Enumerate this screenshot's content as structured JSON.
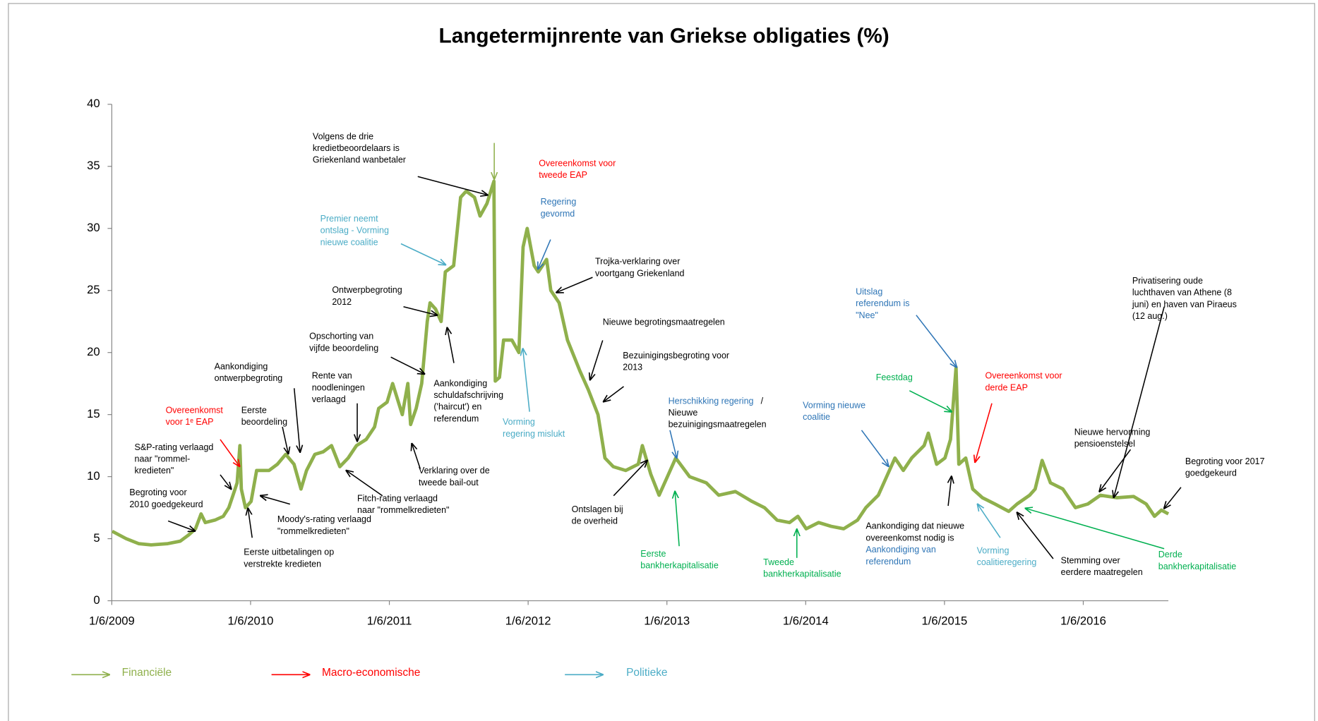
{
  "chart_data": {
    "type": "line",
    "title": "Langetermijnrente van Griekse obligaties (%)",
    "color": "#8fb04c",
    "xlim": [
      2009.4167,
      2017.03
    ],
    "xticks": [
      {
        "value": 2009.4167,
        "label": "1/6/2009"
      },
      {
        "value": 2010.4167,
        "label": "1/6/2010"
      },
      {
        "value": 2011.4167,
        "label": "1/6/2011"
      },
      {
        "value": 2012.4167,
        "label": "1/6/2012"
      },
      {
        "value": 2013.4167,
        "label": "1/6/2013"
      },
      {
        "value": 2014.4167,
        "label": "1/6/2014"
      },
      {
        "value": 2015.4167,
        "label": "1/6/2015"
      },
      {
        "value": 2016.4167,
        "label": "1/6/2016"
      }
    ],
    "ylim": [
      0,
      40
    ],
    "yticks": [
      0,
      5,
      10,
      15,
      20,
      25,
      30,
      35,
      40
    ],
    "x": [
      2009.42,
      2009.52,
      2009.61,
      2009.7,
      2009.82,
      2009.91,
      2009.97,
      2010.02,
      2010.06,
      2010.09,
      2010.16,
      2010.22,
      2010.26,
      2010.29,
      2010.32,
      2010.34,
      2010.35,
      2010.38,
      2010.42,
      2010.46,
      2010.55,
      2010.61,
      2010.67,
      2010.73,
      2010.78,
      2010.82,
      2010.88,
      2010.94,
      2011.0,
      2011.06,
      2011.12,
      2011.18,
      2011.25,
      2011.31,
      2011.34,
      2011.4,
      2011.44,
      2011.51,
      2011.55,
      2011.57,
      2011.61,
      2011.65,
      2011.69,
      2011.71,
      2011.75,
      2011.79,
      2011.82,
      2011.88,
      2011.93,
      2011.97,
      2012.03,
      2012.07,
      2012.12,
      2012.17,
      2012.18,
      2012.21,
      2012.24,
      2012.3,
      2012.35,
      2012.38,
      2012.41,
      2012.46,
      2012.49,
      2012.55,
      2012.58,
      2012.64,
      2012.7,
      2012.79,
      2012.85,
      2012.92,
      2012.97,
      2013.03,
      2013.12,
      2013.21,
      2013.24,
      2013.3,
      2013.36,
      2013.42,
      2013.48,
      2013.58,
      2013.7,
      2013.79,
      2013.91,
      2014.03,
      2014.12,
      2014.21,
      2014.3,
      2014.36,
      2014.42,
      2014.51,
      2014.6,
      2014.69,
      2014.79,
      2014.85,
      2014.94,
      2015.0,
      2015.06,
      2015.12,
      2015.18,
      2015.27,
      2015.3,
      2015.36,
      2015.42,
      2015.46,
      2015.5,
      2015.52,
      2015.57,
      2015.62,
      2015.69,
      2015.78,
      2015.88,
      2015.94,
      2016.03,
      2016.07,
      2016.12,
      2016.18,
      2016.27,
      2016.36,
      2016.45,
      2016.54,
      2016.66,
      2016.78,
      2016.87,
      2016.93,
      2016.98,
      2017.03
    ],
    "values": [
      5.6,
      5.0,
      4.6,
      4.5,
      4.6,
      4.8,
      5.3,
      5.8,
      7.0,
      6.3,
      6.5,
      6.8,
      7.5,
      8.5,
      9.5,
      12.5,
      9.0,
      7.5,
      8.0,
      10.5,
      10.5,
      11.0,
      11.8,
      11.0,
      9.0,
      10.5,
      11.8,
      12.0,
      12.5,
      10.8,
      11.5,
      12.5,
      13.0,
      14.0,
      15.5,
      16.0,
      17.5,
      15.0,
      17.5,
      14.2,
      15.5,
      17.5,
      22.5,
      24.0,
      23.5,
      22.5,
      26.5,
      27.0,
      32.5,
      33.0,
      32.5,
      31.0,
      32.0,
      33.8,
      17.7,
      18.0,
      21.0,
      21.0,
      20.0,
      28.5,
      30.0,
      27.0,
      26.5,
      27.5,
      25.0,
      24.0,
      21.0,
      18.5,
      17.0,
      15.0,
      11.5,
      10.8,
      10.5,
      11.0,
      12.5,
      10.2,
      8.5,
      10.0,
      11.5,
      10.0,
      9.5,
      8.5,
      8.8,
      8.0,
      7.5,
      6.5,
      6.3,
      6.8,
      5.8,
      6.3,
      6.0,
      5.8,
      6.5,
      7.5,
      8.5,
      10.0,
      11.5,
      10.5,
      11.5,
      12.5,
      13.5,
      11.0,
      11.5,
      13.0,
      18.8,
      11.0,
      11.5,
      9.0,
      8.3,
      7.8,
      7.2,
      7.8,
      8.5,
      9.0,
      11.3,
      9.5,
      9.0,
      7.5,
      7.8,
      8.5,
      8.3,
      8.4,
      7.8,
      6.8,
      7.3,
      7.0
    ],
    "annotations": [
      {
        "lines": [
          "Volgens de drie",
          "kredietbeoordelaars  is",
          "Griekenland  wanbetaler"
        ],
        "color": "#000000"
      },
      {
        "lines": [
          "Overeenkomst  voor",
          "tweede  EAP"
        ],
        "color": "#ff0000"
      },
      {
        "lines": [
          "Regering",
          "gevormd"
        ],
        "color": "#2e75b6"
      },
      {
        "lines": [
          "Premier  neemt",
          "ontslag - Vorming",
          "nieuwe coalitie"
        ],
        "color": "#4bacc6"
      },
      {
        "lines": [
          "Trojka-verklaring  over",
          "voortgang  Griekenland"
        ],
        "color": "#000000"
      },
      {
        "lines": [
          "Ontwerpbegroting",
          "2012"
        ],
        "color": "#000000"
      },
      {
        "lines": [
          "Nieuwe begrotingsmaatregelen"
        ],
        "color": "#000000"
      },
      {
        "lines": [
          "Opschorting van",
          "vijfde beoordeling"
        ],
        "color": "#000000"
      },
      {
        "lines": [
          "Bezuinigingsbegroting  voor",
          "2013"
        ],
        "color": "#000000"
      },
      {
        "lines": [
          "Aankondiging",
          "ontwerpbegroting"
        ],
        "color": "#000000"
      },
      {
        "lines": [
          "Rente van",
          "noodleningen",
          "verlaagd"
        ],
        "color": "#000000"
      },
      {
        "lines": [
          "Aankondiging",
          "schuldafschrijving",
          "('haircut')  en",
          "referendum"
        ],
        "color": "#000000"
      },
      {
        "lines": [
          "Eerste",
          "beoordeling"
        ],
        "color": "#000000"
      },
      {
        "lines": [
          "Overeenkomst",
          "voor 1ᵉ EAP"
        ],
        "color": "#ff0000"
      },
      {
        "lines": [
          "S&P-rating  verlaagd",
          "naar  \"rommel-",
          "kredieten\""
        ],
        "color": "#000000"
      },
      {
        "lines": [
          "Vorming",
          "regering  mislukt"
        ],
        "color": "#4bacc6"
      },
      {
        "lines": [
          "Verklaring  over de",
          "tweede  bail-out"
        ],
        "color": "#000000"
      },
      {
        "lines": [
          "Begroting voor",
          "2010 goedgekeurd"
        ],
        "color": "#000000"
      },
      {
        "lines": [
          "Moody's-rating verlaagd",
          "\"rommelkredieten\""
        ],
        "color": "#000000"
      },
      {
        "lines": [
          "Fitch-rating  verlaagd",
          "naar \"rommelkredieten\""
        ],
        "color": "#000000"
      },
      {
        "lines": [
          "Eerste uitbetalingen  op",
          "verstrekte  kredieten"
        ],
        "color": "#000000"
      },
      {
        "lines": [
          "Herschikking  regering"
        ],
        "color": "#2e75b6"
      },
      {
        "lines": [
          "/",
          "Nieuwe",
          "bezuinigingsmaatregelen"
        ],
        "color": "#000000"
      },
      {
        "lines": [
          "Ontslagen  bij",
          "de overheid"
        ],
        "color": "#000000"
      },
      {
        "lines": [
          "Eerste",
          "bankherkapitalisatie"
        ],
        "color": "#00b050"
      },
      {
        "lines": [
          "Tweede",
          "bankherkapitalisatie"
        ],
        "color": "#00b050"
      },
      {
        "lines": [
          "Vorming  nieuwe",
          "coalitie"
        ],
        "color": "#2e75b6"
      },
      {
        "lines": [
          "Uitslag",
          "referendum   is",
          "\"Nee\""
        ],
        "color": "#2e75b6"
      },
      {
        "lines": [
          "Feestdag"
        ],
        "color": "#00b050"
      },
      {
        "lines": [
          "Overeenkomst  voor",
          "derde EAP"
        ],
        "color": "#ff0000"
      },
      {
        "lines": [
          "Aankondiging  dat nieuwe",
          "overeenkomst  nodig is"
        ],
        "color": "#000000"
      },
      {
        "lines": [
          "Aankondiging  van",
          "referendum"
        ],
        "color": "#2e75b6"
      },
      {
        "lines": [
          "Vorming",
          "coalitieregering"
        ],
        "color": "#4bacc6"
      },
      {
        "lines": [
          "Stemming  over",
          "eerdere maatregelen"
        ],
        "color": "#000000"
      },
      {
        "lines": [
          "Derde",
          "bankherkapitalisatie"
        ],
        "color": "#00b050"
      },
      {
        "lines": [
          "Nieuwe  hervorming",
          "pensioenstelsel"
        ],
        "color": "#000000"
      },
      {
        "lines": [
          "Privatisering  oude",
          "luchthaven van Athene (8",
          "juni) en haven van Piraeus",
          "(12 aug.)"
        ],
        "color": "#000000"
      },
      {
        "lines": [
          "Begroting voor 2017",
          "goedgekeurd"
        ],
        "color": "#000000"
      }
    ],
    "legend_items": [
      {
        "name": "Financiële",
        "color": "#8fb04c"
      },
      {
        "name": "Macro-economische",
        "color": "#ff0000"
      },
      {
        "name": "Politieke",
        "color": "#4bacc6"
      }
    ]
  }
}
